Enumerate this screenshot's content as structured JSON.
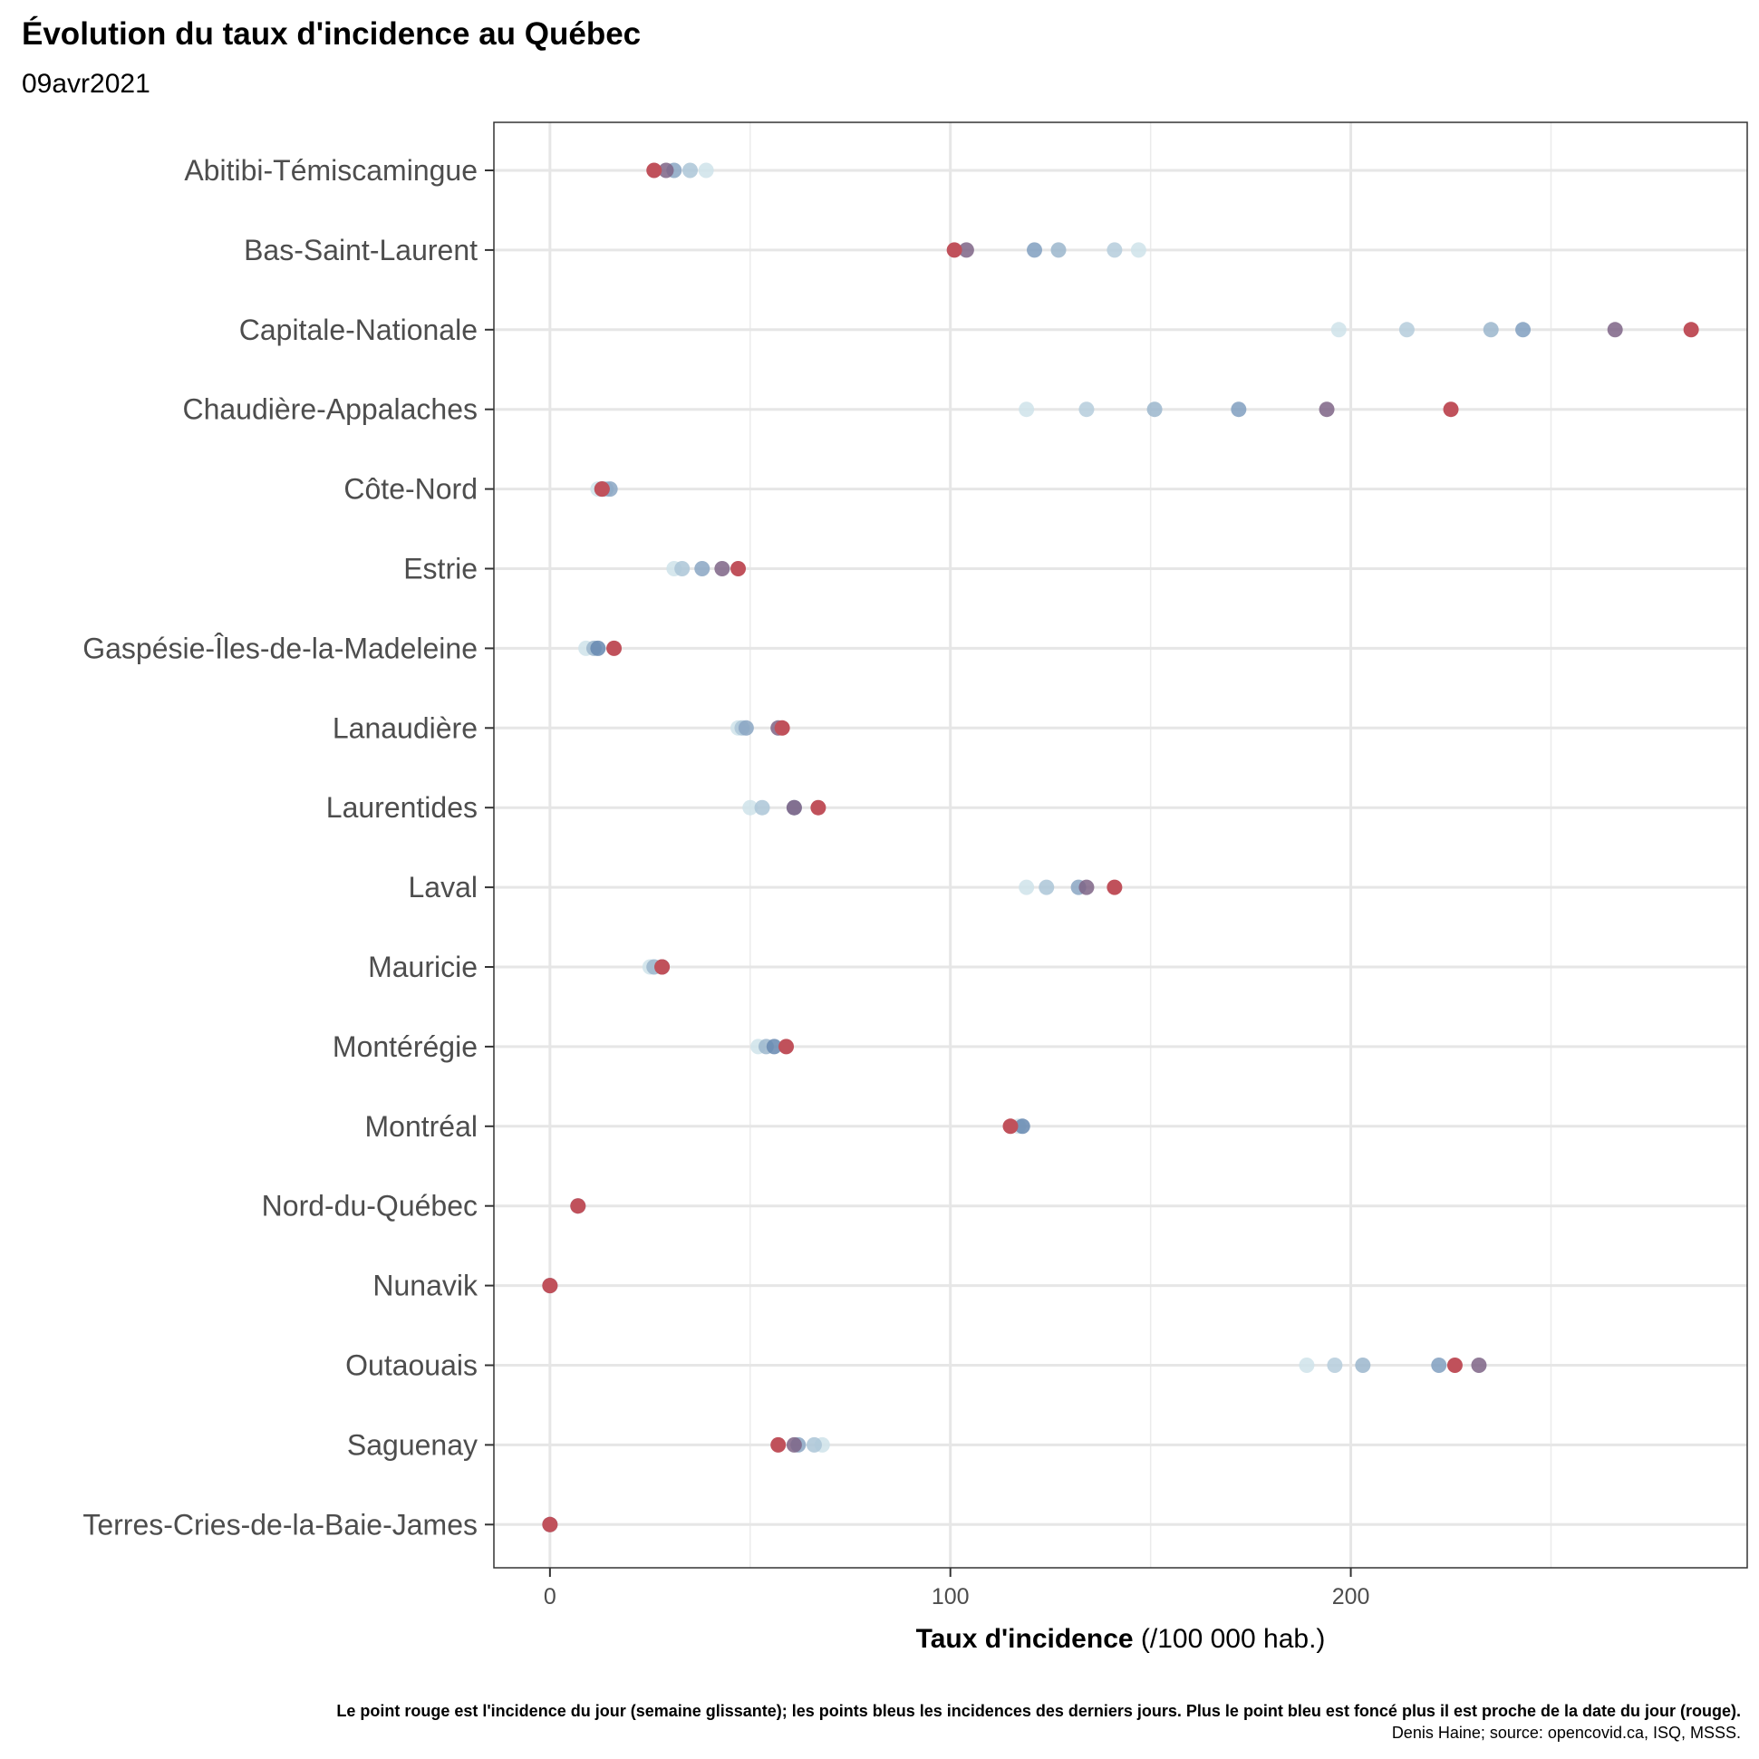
{
  "title": "Évolution du taux d'incidence au Québec",
  "subtitle": "09avr2021",
  "caption": "Le point rouge est l'incidence du jour (semaine glissante); les points bleus les incidences des derniers jours. Plus le point bleu est foncé plus il est proche de la date du jour (rouge).",
  "source": "Denis Haine; source: opencovid.ca, ISQ, MSSS.",
  "colors": {
    "today": "#C0515B",
    "recent": "#7E6486",
    "blue_dark": "#6688B0",
    "blue_light": "#CFE3EA"
  },
  "chart_data": {
    "type": "scatter",
    "x_axis": {
      "label_bold": "Taux d'incidence",
      "label_rest": " (/100 000 hab.)",
      "ticks": [
        0,
        100,
        200
      ],
      "xlim": [
        -14,
        299
      ]
    },
    "grid": true,
    "series_note": "per region: earlier days (light to dark blue), then today (red)",
    "regions": [
      {
        "name": "Abitibi-Témiscamingue",
        "history": [
          39,
          35,
          31,
          29
        ],
        "today": 26
      },
      {
        "name": "Bas-Saint-Laurent",
        "history": [
          147,
          141,
          127,
          121,
          104
        ],
        "today": 101
      },
      {
        "name": "Capitale-Nationale",
        "history": [
          197,
          214,
          235,
          243,
          266
        ],
        "today": 285
      },
      {
        "name": "Chaudière-Appalaches",
        "history": [
          119,
          134,
          151,
          172,
          194
        ],
        "today": 225
      },
      {
        "name": "Côte-Nord",
        "history": [
          12,
          14,
          15,
          13
        ],
        "today": 13
      },
      {
        "name": "Estrie",
        "history": [
          31,
          33,
          38,
          43
        ],
        "today": 47
      },
      {
        "name": "Gaspésie-Îles-de-la-Madeleine",
        "history": [
          9,
          11,
          12
        ],
        "today": 16
      },
      {
        "name": "Lanaudière",
        "history": [
          47,
          48,
          49,
          57
        ],
        "today": 58
      },
      {
        "name": "Laurentides",
        "history": [
          50,
          53,
          61,
          61
        ],
        "today": 67
      },
      {
        "name": "Laval",
        "history": [
          119,
          124,
          132,
          134
        ],
        "today": 141
      },
      {
        "name": "Mauricie",
        "history": [
          25,
          26,
          28
        ],
        "today": 28
      },
      {
        "name": "Montérégie",
        "history": [
          52,
          54,
          56
        ],
        "today": 59
      },
      {
        "name": "Montréal",
        "history": [
          117,
          118
        ],
        "today": 115
      },
      {
        "name": "Nord-du-Québec",
        "history": [
          7
        ],
        "today": 7
      },
      {
        "name": "Nunavik",
        "history": [
          0
        ],
        "today": 0
      },
      {
        "name": "Outaouais",
        "history": [
          189,
          196,
          203,
          222,
          232
        ],
        "today": 226
      },
      {
        "name": "Saguenay",
        "history": [
          68,
          66,
          62,
          61
        ],
        "today": 57
      },
      {
        "name": "Terres-Cries-de-la-Baie-James",
        "history": [
          0
        ],
        "today": 0
      }
    ]
  }
}
